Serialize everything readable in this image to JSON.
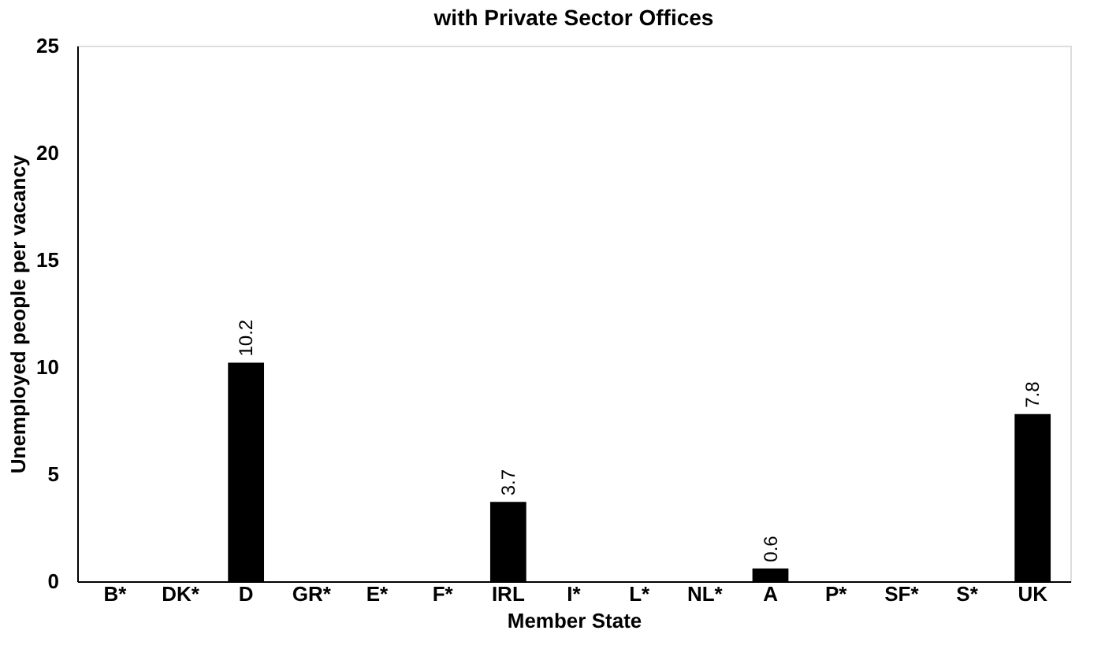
{
  "chart_data": {
    "type": "bar",
    "title": "with Private Sector Offices",
    "xlabel": "Member State",
    "ylabel": "Unemployed people per vacancy",
    "categories": [
      "B*",
      "DK*",
      "D",
      "GR*",
      "E*",
      "F*",
      "IRL",
      "I*",
      "L*",
      "NL*",
      "A",
      "P*",
      "SF*",
      "S*",
      "UK"
    ],
    "values": [
      null,
      null,
      10.2,
      null,
      null,
      null,
      3.7,
      null,
      null,
      null,
      0.6,
      null,
      null,
      null,
      7.8
    ],
    "color": "#000000",
    "ylim": [
      0,
      25
    ],
    "yticks": [
      0,
      5,
      10,
      15,
      20,
      25
    ],
    "grid": false,
    "data_labels": true
  }
}
